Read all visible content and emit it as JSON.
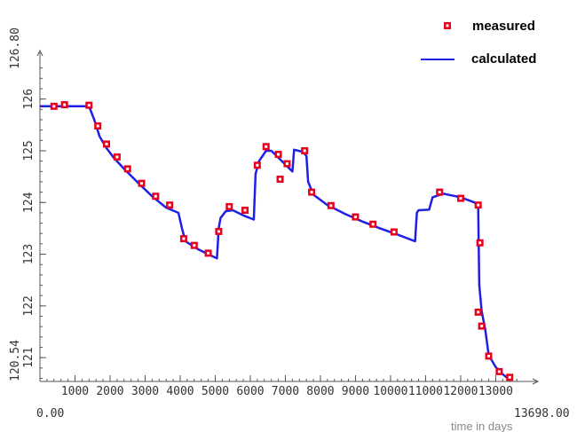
{
  "chart_data": {
    "type": "scatter",
    "x_axis": {
      "min": 0,
      "max": 13698,
      "min_label": "0.00",
      "max_label": "13698.00",
      "ticks": [
        1000,
        2000,
        3000,
        4000,
        5000,
        6000,
        7000,
        8000,
        9000,
        10000,
        11000,
        12000,
        13000
      ],
      "label": "time in days"
    },
    "y_axis": {
      "min": 120.54,
      "max": 126.8,
      "min_label": "120.54",
      "max_label": "126.80",
      "ticks": [
        121,
        122,
        123,
        124,
        125,
        126
      ]
    },
    "grid": false,
    "legend_position": "top-right",
    "series": [
      {
        "name": "measured",
        "color": "#e8001c",
        "marker": "square",
        "points": [
          [
            400,
            125.86
          ],
          [
            700,
            125.89
          ],
          [
            1400,
            125.88
          ],
          [
            1650,
            125.48
          ],
          [
            1900,
            125.13
          ],
          [
            2200,
            124.88
          ],
          [
            2500,
            124.65
          ],
          [
            2900,
            124.37
          ],
          [
            3300,
            124.12
          ],
          [
            3700,
            123.95
          ],
          [
            4100,
            123.3
          ],
          [
            4400,
            123.17
          ],
          [
            4800,
            123.02
          ],
          [
            5100,
            123.44
          ],
          [
            5400,
            123.92
          ],
          [
            5850,
            123.85
          ],
          [
            6200,
            124.72
          ],
          [
            6450,
            125.08
          ],
          [
            6800,
            124.93
          ],
          [
            6850,
            124.45
          ],
          [
            7050,
            124.75
          ],
          [
            7550,
            125.0
          ],
          [
            7750,
            124.2
          ],
          [
            8300,
            123.94
          ],
          [
            9000,
            123.72
          ],
          [
            9500,
            123.58
          ],
          [
            10100,
            123.43
          ],
          [
            11400,
            124.2
          ],
          [
            12000,
            124.08
          ],
          [
            12500,
            123.95
          ],
          [
            12550,
            123.22
          ],
          [
            12500,
            121.88
          ],
          [
            12600,
            121.61
          ],
          [
            12800,
            121.03
          ],
          [
            13100,
            120.73
          ],
          [
            13400,
            120.62
          ]
        ]
      },
      {
        "name": "calculated",
        "color": "#1f1fe6",
        "marker": "line",
        "points": [
          [
            0,
            125.86
          ],
          [
            1400,
            125.86
          ],
          [
            1550,
            125.6
          ],
          [
            1700,
            125.28
          ],
          [
            1900,
            125.05
          ],
          [
            2100,
            124.87
          ],
          [
            2400,
            124.65
          ],
          [
            2800,
            124.38
          ],
          [
            3200,
            124.12
          ],
          [
            3600,
            123.9
          ],
          [
            3950,
            123.8
          ],
          [
            4050,
            123.5
          ],
          [
            4150,
            123.25
          ],
          [
            4500,
            123.1
          ],
          [
            4800,
            123.0
          ],
          [
            5050,
            122.92
          ],
          [
            5100,
            123.5
          ],
          [
            5150,
            123.7
          ],
          [
            5300,
            123.83
          ],
          [
            5500,
            123.85
          ],
          [
            5800,
            123.75
          ],
          [
            6100,
            123.67
          ],
          [
            6150,
            124.55
          ],
          [
            6250,
            124.8
          ],
          [
            6450,
            125.0
          ],
          [
            6600,
            125.0
          ],
          [
            6900,
            124.8
          ],
          [
            7200,
            124.6
          ],
          [
            7250,
            125.02
          ],
          [
            7500,
            124.98
          ],
          [
            7600,
            124.9
          ],
          [
            7650,
            124.4
          ],
          [
            7800,
            124.15
          ],
          [
            8200,
            123.95
          ],
          [
            8700,
            123.78
          ],
          [
            9200,
            123.63
          ],
          [
            9700,
            123.5
          ],
          [
            10200,
            123.38
          ],
          [
            10700,
            123.25
          ],
          [
            10750,
            123.8
          ],
          [
            10800,
            123.85
          ],
          [
            11100,
            123.86
          ],
          [
            11200,
            124.1
          ],
          [
            11500,
            124.17
          ],
          [
            12000,
            124.1
          ],
          [
            12400,
            124.0
          ],
          [
            12500,
            123.9
          ],
          [
            12530,
            122.4
          ],
          [
            12600,
            121.9
          ],
          [
            12700,
            121.55
          ],
          [
            12800,
            121.05
          ],
          [
            13000,
            120.82
          ],
          [
            13200,
            120.68
          ],
          [
            13400,
            120.57
          ]
        ]
      }
    ]
  }
}
